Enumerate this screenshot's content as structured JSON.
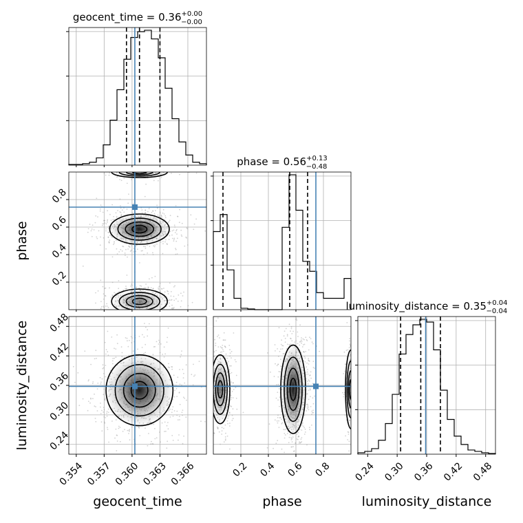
{
  "colors": {
    "truth": "#4682b4",
    "hist": "#000000",
    "grid": "#b0b0b0",
    "scatter": "#9a9a9a"
  },
  "chart_data": {
    "type": "corner",
    "parameters": [
      {
        "name": "geocent_time",
        "title": {
          "prefix": "geocent_time = ",
          "median": "0.36",
          "plus": "+0.00",
          "minus": "−0.00"
        },
        "range": [
          0.3532,
          0.368
        ],
        "ticks": [
          0.354,
          0.357,
          0.36,
          0.363,
          0.366
        ],
        "tick_labels": [
          "0.354",
          "0.357",
          "0.360",
          "0.363",
          "0.366"
        ],
        "quantiles": [
          0.3594,
          0.3608,
          0.363
        ],
        "truth": 0.3603,
        "hist_edges_start": 0.3532,
        "hist_bin": 0.00074,
        "hist_counts": [
          0.5,
          0.5,
          1,
          2,
          5,
          14,
          31,
          52,
          73,
          88,
          92,
          93,
          87,
          74,
          53,
          32,
          16,
          7,
          2,
          1
        ]
      },
      {
        "name": "phase",
        "title": {
          "prefix": "phase = ",
          "median": "0.56",
          "plus": "+0.13",
          "minus": "−0.48"
        },
        "range": [
          0.0,
          1.0
        ],
        "ticks": [
          0.2,
          0.4,
          0.6,
          0.8
        ],
        "tick_labels": [
          "0.2",
          "0.4",
          "0.6",
          "0.8"
        ],
        "quantiles": [
          0.07,
          0.555,
          0.685
        ],
        "truth": 0.745,
        "hist_edges_start": 0.0,
        "hist_bin": 0.05,
        "hist_counts": [
          55,
          67,
          28,
          8,
          1,
          0.5,
          0,
          0,
          0,
          0,
          58,
          95,
          70,
          34,
          27,
          12,
          8,
          8,
          8,
          22
        ]
      },
      {
        "name": "luminosity_distance",
        "title": {
          "prefix": "luminosity_distance = ",
          "median": "0.35",
          "plus": "+0.04",
          "minus": "−0.04"
        },
        "range": [
          0.22,
          0.5
        ],
        "ticks": [
          0.24,
          0.3,
          0.36,
          0.42,
          0.48
        ],
        "tick_labels": [
          "0.24",
          "0.30",
          "0.36",
          "0.42",
          "0.48"
        ],
        "quantiles": [
          0.307,
          0.348,
          0.388
        ],
        "truth": 0.358,
        "hist_edges_start": 0.22,
        "hist_bin": 0.014,
        "hist_counts": [
          1,
          2,
          4,
          10,
          22,
          43,
          72,
          86,
          93,
          97,
          95,
          75,
          46,
          25,
          13,
          7,
          3,
          2,
          1,
          0.5
        ]
      }
    ],
    "truth_point": {
      "geocent_time": 0.3603,
      "phase": 0.745,
      "luminosity_distance": 0.358
    },
    "axis_labels": {
      "geocent_time": "geocent_time",
      "phase": "phase",
      "luminosity_distance": "luminosity_distance"
    }
  }
}
